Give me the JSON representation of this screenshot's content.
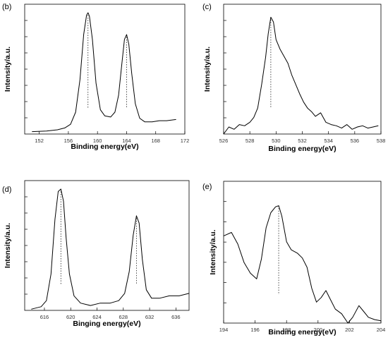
{
  "chart_data": [
    {
      "type": "line",
      "panel": "(b)",
      "xlabel": "Binding energy(eV)",
      "ylabel": "Intensity/a.u.",
      "xlim": [
        150,
        172
      ],
      "ylim": [
        0,
        1.07
      ],
      "x_ticks": [
        152,
        156,
        160,
        164,
        168,
        172
      ],
      "y_minor_ticks": 7,
      "marker_lines": [
        158.7,
        164.0
      ],
      "x": [
        151.0,
        153.0,
        154.5,
        155.5,
        156.3,
        157.0,
        157.6,
        158.1,
        158.5,
        158.7,
        158.9,
        159.3,
        159.8,
        160.4,
        161.0,
        161.8,
        162.4,
        162.9,
        163.3,
        163.7,
        164.0,
        164.3,
        164.7,
        165.2,
        165.8,
        166.5,
        167.5,
        168.5,
        169.5,
        170.8
      ],
      "y": [
        0.02,
        0.025,
        0.035,
        0.05,
        0.08,
        0.18,
        0.45,
        0.82,
        0.98,
        1.0,
        0.97,
        0.78,
        0.42,
        0.2,
        0.15,
        0.14,
        0.18,
        0.32,
        0.55,
        0.78,
        0.82,
        0.74,
        0.5,
        0.25,
        0.13,
        0.1,
        0.1,
        0.11,
        0.11,
        0.12
      ]
    },
    {
      "type": "line",
      "panel": "(c)",
      "xlabel": "Binding energy(eV)",
      "ylabel": "Intensity/a.u.",
      "xlim": [
        526,
        538
      ],
      "ylim": [
        0,
        1.1
      ],
      "x_ticks": [
        526,
        528,
        530,
        532,
        534,
        536,
        538
      ],
      "y_minor_ticks": 7,
      "marker_lines": [
        529.6
      ],
      "x": [
        526.0,
        526.4,
        526.8,
        527.2,
        527.6,
        528.0,
        528.3,
        528.6,
        528.9,
        529.2,
        529.4,
        529.6,
        529.8,
        530.0,
        530.3,
        530.6,
        530.9,
        531.2,
        531.5,
        531.8,
        532.1,
        532.4,
        532.7,
        533.0,
        533.4,
        533.8,
        534.2,
        534.6,
        535.0,
        535.4,
        535.8,
        536.2,
        536.6,
        537.0,
        537.4,
        537.8
      ],
      "y": [
        0.0,
        0.06,
        0.04,
        0.08,
        0.07,
        0.1,
        0.14,
        0.22,
        0.42,
        0.65,
        0.85,
        0.99,
        0.95,
        0.8,
        0.72,
        0.66,
        0.6,
        0.5,
        0.42,
        0.34,
        0.27,
        0.22,
        0.19,
        0.15,
        0.18,
        0.1,
        0.08,
        0.07,
        0.05,
        0.08,
        0.04,
        0.06,
        0.07,
        0.05,
        0.06,
        0.07
      ]
    },
    {
      "type": "line",
      "panel": "(d)",
      "xlabel": "Binging energy(eV)",
      "ylabel": "Intensity/a.u.",
      "xlim": [
        613,
        638
      ],
      "ylim": [
        0,
        1.07
      ],
      "x_ticks": [
        616,
        620,
        624,
        628,
        632,
        636
      ],
      "y_minor_ticks": 7,
      "marker_lines": [
        618.5,
        630.0
      ],
      "x": [
        614.0,
        615.5,
        616.3,
        617.0,
        617.6,
        618.1,
        618.5,
        618.9,
        619.3,
        619.8,
        620.5,
        621.5,
        623.0,
        624.5,
        626.0,
        627.3,
        628.2,
        628.9,
        629.5,
        630.0,
        630.4,
        630.9,
        631.5,
        632.3,
        633.5,
        635.0,
        636.5,
        638.0
      ],
      "y": [
        0.01,
        0.03,
        0.08,
        0.3,
        0.75,
        0.98,
        1.0,
        0.9,
        0.6,
        0.3,
        0.12,
        0.06,
        0.04,
        0.06,
        0.06,
        0.08,
        0.14,
        0.32,
        0.62,
        0.78,
        0.72,
        0.42,
        0.17,
        0.1,
        0.1,
        0.12,
        0.12,
        0.14
      ]
    },
    {
      "type": "line",
      "panel": "(e)",
      "xlabel": "Binding energy(eV)",
      "ylabel": "Intensity/a.u.",
      "xlim": [
        194,
        204
      ],
      "ylim": [
        0,
        1.22
      ],
      "x_ticks": [
        194,
        196,
        198,
        200,
        202,
        204
      ],
      "y_minor_ticks": 6,
      "marker_lines": [
        197.5
      ],
      "x": [
        194.0,
        194.5,
        194.9,
        195.3,
        195.7,
        196.1,
        196.4,
        196.7,
        197.0,
        197.3,
        197.5,
        197.7,
        198.0,
        198.3,
        198.7,
        199.0,
        199.3,
        199.6,
        199.9,
        200.2,
        200.5,
        200.8,
        201.1,
        201.5,
        201.9,
        202.2,
        202.6,
        202.9,
        203.2,
        203.6,
        204.0
      ],
      "y": [
        0.75,
        0.78,
        0.68,
        0.52,
        0.43,
        0.38,
        0.55,
        0.82,
        0.95,
        1.0,
        1.01,
        0.92,
        0.7,
        0.63,
        0.6,
        0.56,
        0.48,
        0.3,
        0.18,
        0.22,
        0.28,
        0.2,
        0.12,
        0.08,
        0.0,
        0.05,
        0.15,
        0.1,
        0.05,
        0.03,
        0.02
      ]
    }
  ]
}
